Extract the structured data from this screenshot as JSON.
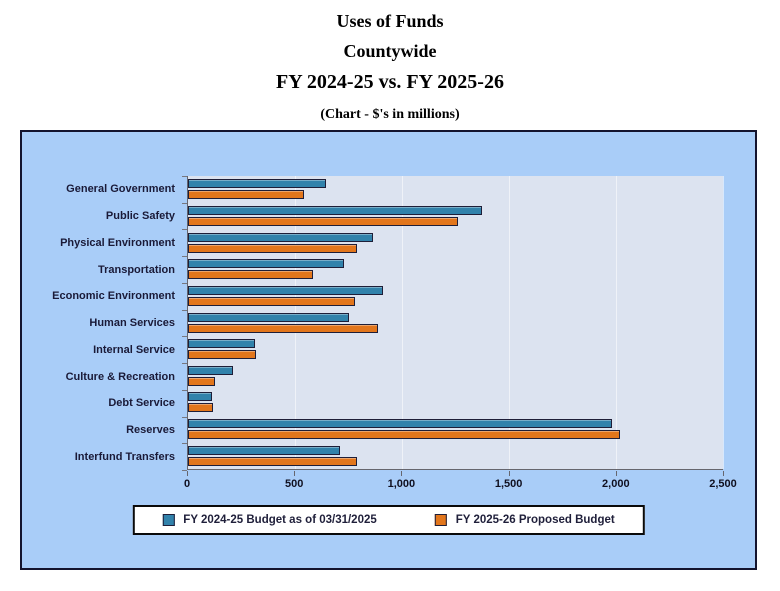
{
  "title": {
    "line1": "Uses of Funds",
    "line2": "Countywide",
    "line3": "FY 2024-25 vs. FY 2025-26",
    "subtitle": "(Chart - $'s in millions)"
  },
  "chart_data": {
    "type": "bar",
    "orientation": "horizontal",
    "units": "$ millions",
    "categories": [
      "General Government",
      "Public Safety",
      "Physical Environment",
      "Transportation",
      "Economic Environment",
      "Human Services",
      "Internal Service",
      "Culture & Recreation",
      "Debt Service",
      "Reserves",
      "Interfund Transfers"
    ],
    "series": [
      {
        "name": "FY 2024-25 Budget as of 03/31/2025",
        "color": "#3182AB",
        "values": [
          645,
          1375,
          865,
          730,
          910,
          750,
          315,
          210,
          110,
          1980,
          710
        ]
      },
      {
        "name": "FY 2025-26 Proposed Budget",
        "color": "#E2761C",
        "values": [
          540,
          1260,
          790,
          585,
          780,
          890,
          320,
          125,
          115,
          2020,
          790
        ]
      }
    ],
    "xlim": [
      0,
      2500
    ],
    "x_tick_values": [
      0,
      500,
      1000,
      1500,
      2000,
      2500
    ],
    "x_tick_labels": [
      "0",
      "500",
      "1,000",
      "1,500",
      "2,000",
      "2,500"
    ],
    "legend_position": "bottom-inside",
    "grid": "faint-vertical-every-500"
  },
  "colors": {
    "chart_background": "#A9CDF8",
    "plot_background": "#DCE3F0",
    "chart_border": "#14142E",
    "series1_fill": "#3182AB",
    "series2_fill": "#E2761C",
    "bar_border": "#1E1E38",
    "label_text": "#1A1A38"
  }
}
